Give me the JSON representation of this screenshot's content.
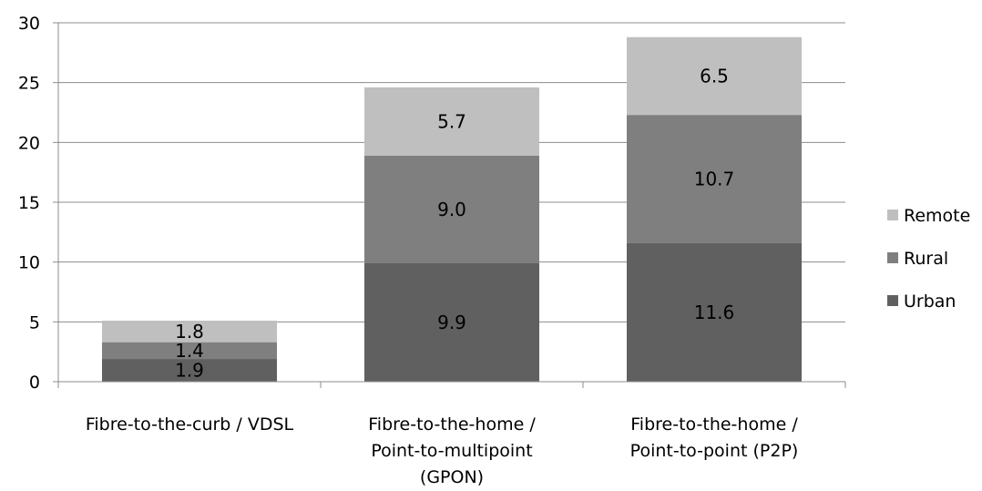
{
  "chart_data": {
    "type": "bar",
    "stacked": true,
    "categories": [
      [
        "Fibre-to-the-curb / VDSL"
      ],
      [
        "Fibre-to-the-home /",
        "Point-to-multipoint",
        "(GPON)"
      ],
      [
        "Fibre-to-the-home /",
        "Point-to-point (P2P)"
      ]
    ],
    "series": [
      {
        "name": "Urban",
        "values": [
          1.9,
          9.9,
          11.6
        ],
        "labels": [
          "1.9",
          "9.9",
          "11.6"
        ],
        "color": "#606060"
      },
      {
        "name": "Rural",
        "values": [
          1.4,
          9.0,
          10.7
        ],
        "labels": [
          "1.4",
          "9.0",
          "10.7"
        ],
        "color": "#7f7f7f"
      },
      {
        "name": "Remote",
        "values": [
          1.8,
          5.7,
          6.5
        ],
        "labels": [
          "1.8",
          "5.7",
          "6.5"
        ],
        "color": "#bfbfbf"
      }
    ],
    "ylim": [
      0,
      30
    ],
    "yticks": [
      0,
      5,
      10,
      15,
      20,
      25,
      30
    ],
    "grid": true,
    "legend": "right",
    "legend_order": [
      "Remote",
      "Rural",
      "Urban"
    ],
    "title": "",
    "xlabel": "",
    "ylabel": ""
  }
}
